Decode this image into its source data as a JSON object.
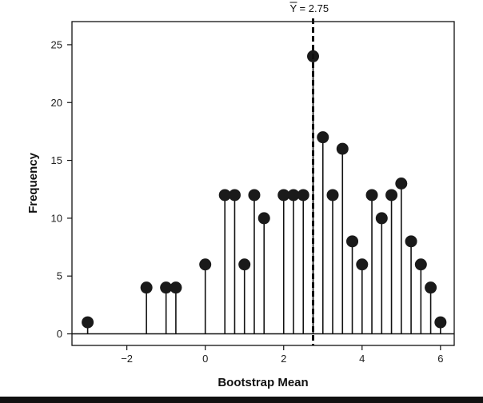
{
  "chart_data": {
    "type": "scatter",
    "style": "lollipop",
    "xlabel": "Bootstrap Mean",
    "ylabel": "Frequency",
    "xlim": [
      -3.4,
      6.35
    ],
    "ylim": [
      -1,
      27
    ],
    "xticks": [
      -2,
      0,
      2,
      4,
      6
    ],
    "xtick_labels": [
      "−2",
      "0",
      "2",
      "4",
      "6"
    ],
    "yticks": [
      0,
      5,
      10,
      15,
      20,
      25
    ],
    "ytick_labels": [
      "0",
      "5",
      "10",
      "15",
      "20",
      "25"
    ],
    "grid": false,
    "baseline": 0,
    "points": [
      {
        "x": -3.0,
        "y": 1
      },
      {
        "x": -1.5,
        "y": 4
      },
      {
        "x": -1.0,
        "y": 4
      },
      {
        "x": -0.75,
        "y": 4
      },
      {
        "x": 0.0,
        "y": 6
      },
      {
        "x": 0.5,
        "y": 12
      },
      {
        "x": 0.75,
        "y": 12
      },
      {
        "x": 1.0,
        "y": 6
      },
      {
        "x": 1.25,
        "y": 12
      },
      {
        "x": 1.5,
        "y": 10
      },
      {
        "x": 2.0,
        "y": 12
      },
      {
        "x": 2.25,
        "y": 12
      },
      {
        "x": 2.5,
        "y": 12
      },
      {
        "x": 2.75,
        "y": 24
      },
      {
        "x": 3.0,
        "y": 17
      },
      {
        "x": 3.25,
        "y": 12
      },
      {
        "x": 3.5,
        "y": 16
      },
      {
        "x": 3.75,
        "y": 8
      },
      {
        "x": 4.0,
        "y": 6
      },
      {
        "x": 4.25,
        "y": 12
      },
      {
        "x": 4.5,
        "y": 10
      },
      {
        "x": 4.75,
        "y": 12
      },
      {
        "x": 5.0,
        "y": 13
      },
      {
        "x": 5.25,
        "y": 8
      },
      {
        "x": 5.5,
        "y": 6
      },
      {
        "x": 5.75,
        "y": 4
      },
      {
        "x": 6.0,
        "y": 1
      }
    ],
    "reference_line": {
      "x": 2.75,
      "style": "dashed",
      "label_symbol": "Y",
      "label_text": " = 2.75"
    },
    "colors": {
      "marker": "#1a1a1a",
      "stem": "#111111",
      "axis": "#111111"
    }
  }
}
